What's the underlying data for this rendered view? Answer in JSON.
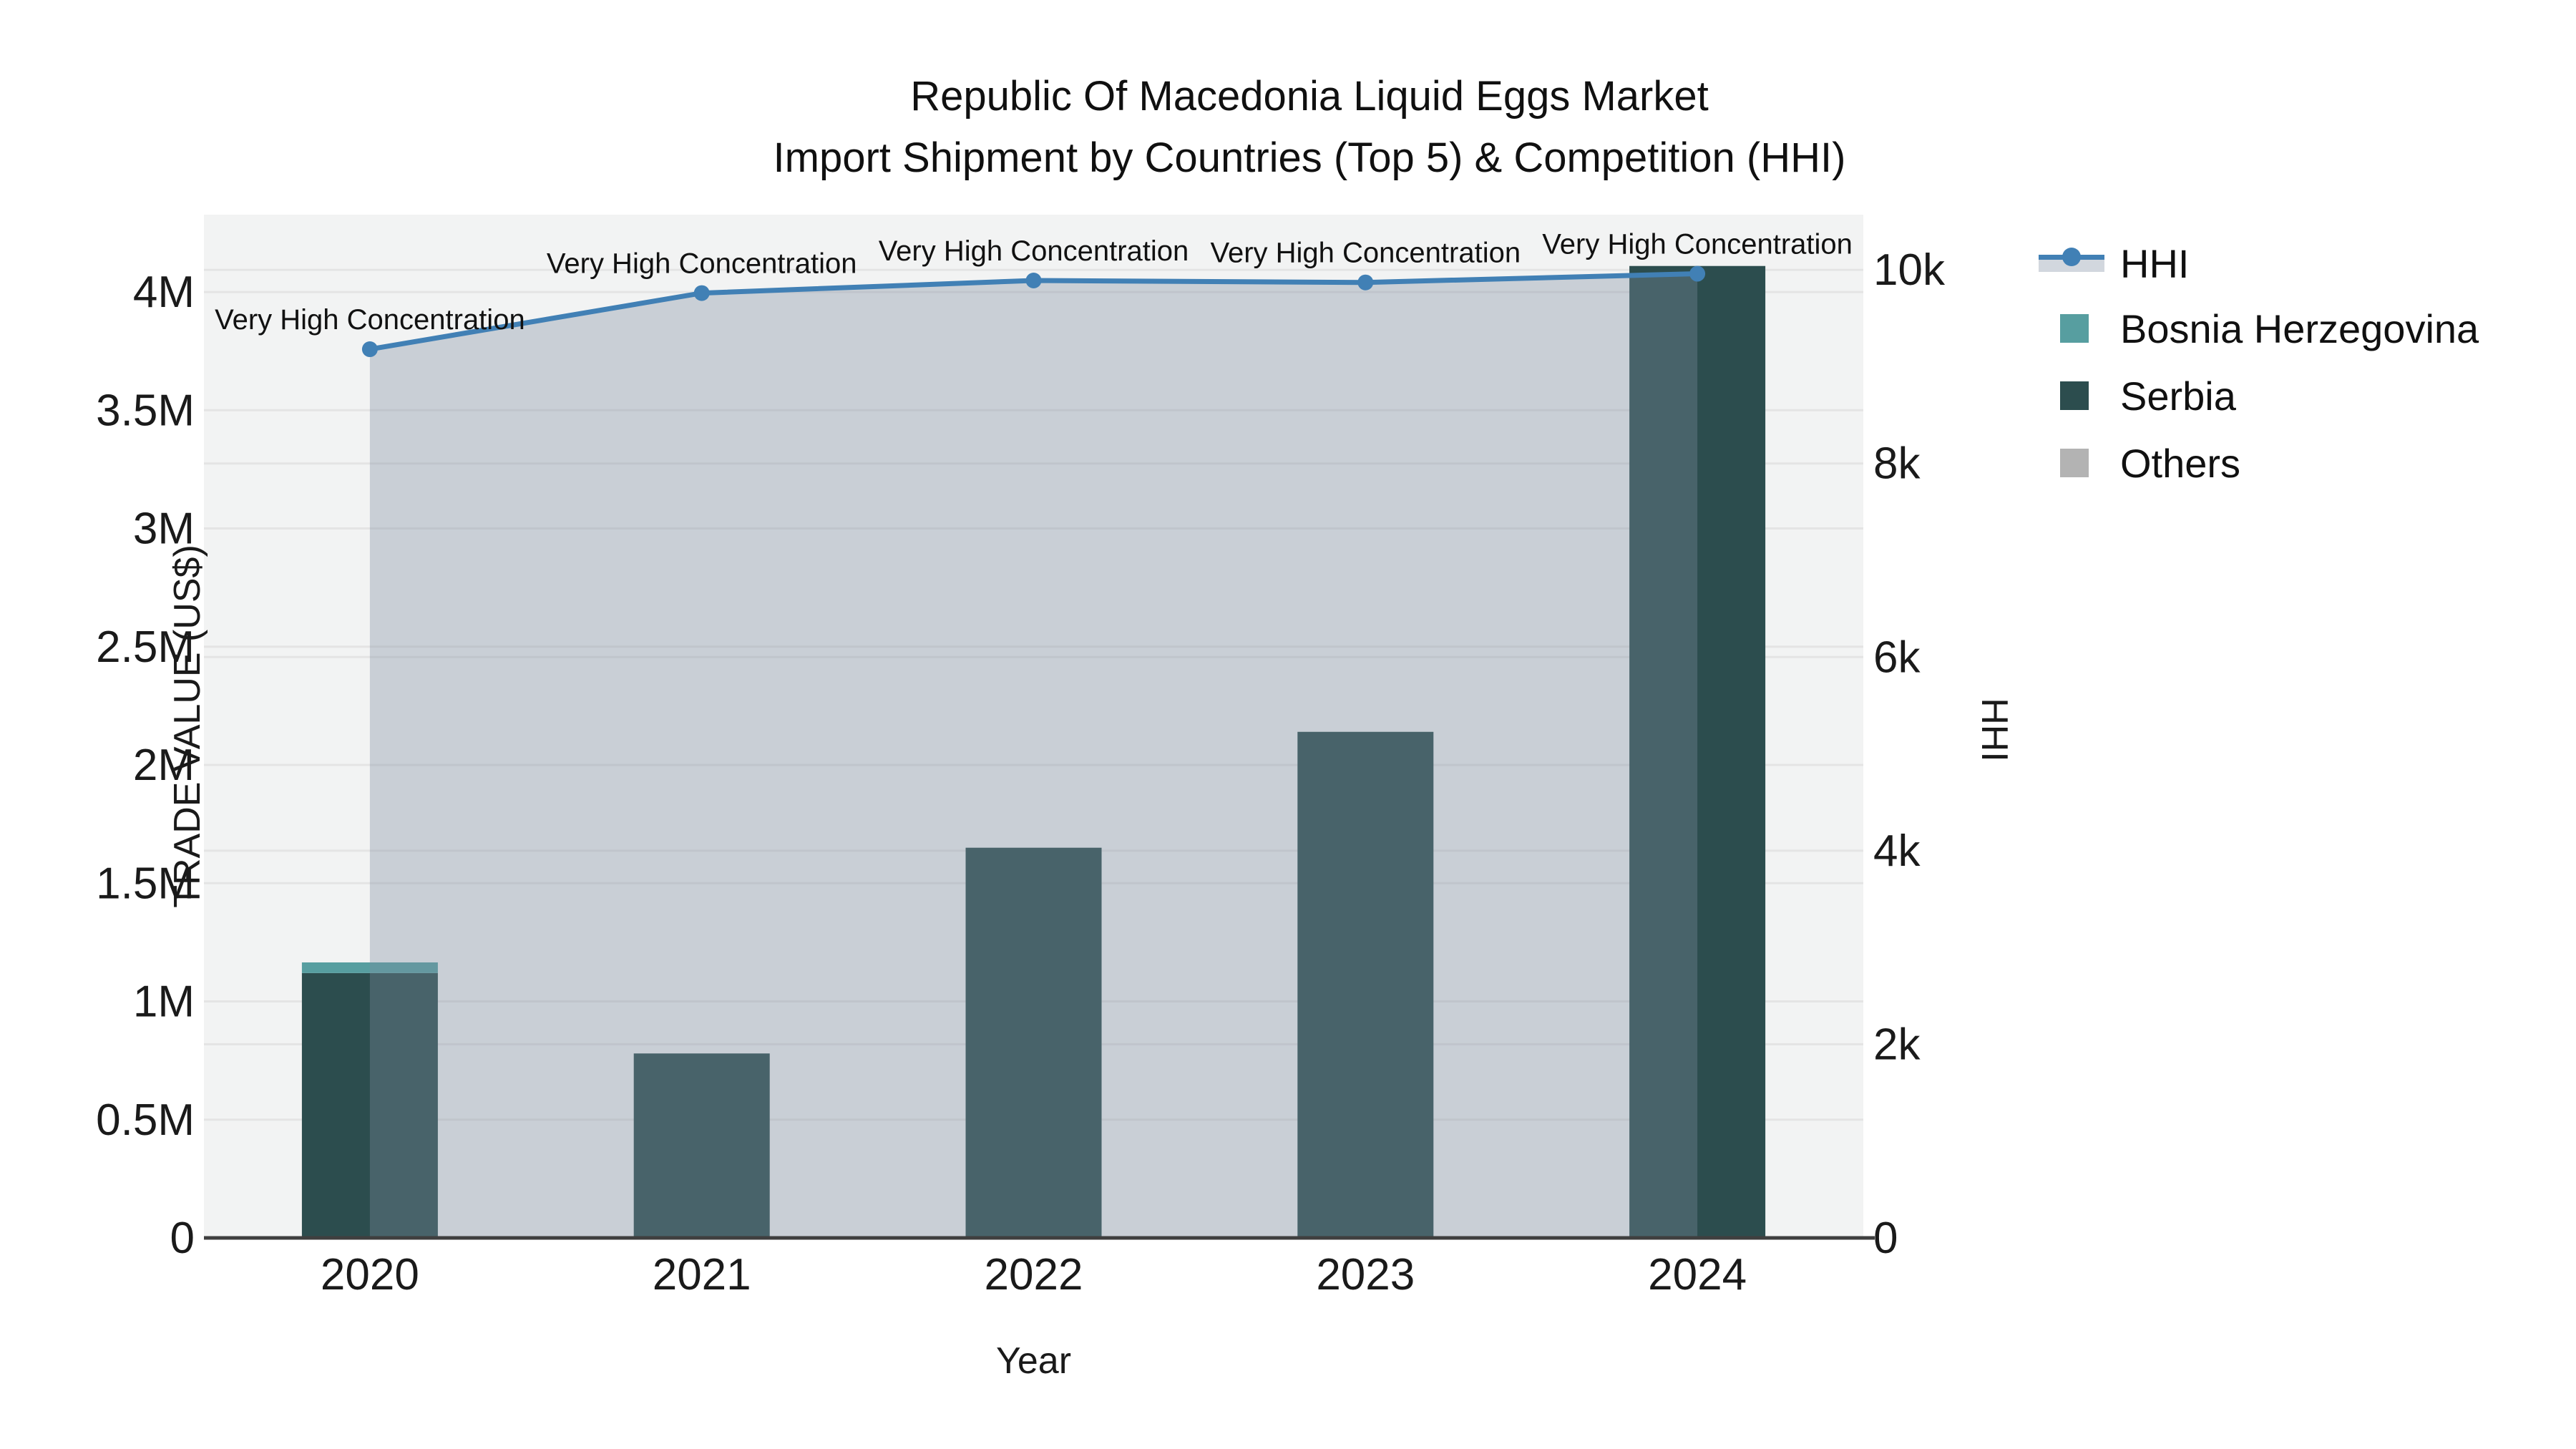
{
  "title": {
    "line1": "Republic Of Macedonia Liquid Eggs Market",
    "line2": "Import Shipment by Countries (Top 5) & Competition (HHI)"
  },
  "axes": {
    "x_title": "Year",
    "y_left_title": "TRADE VALUE (US$)",
    "y_right_title": "HHI"
  },
  "legend": {
    "items": [
      {
        "label": "HHI",
        "type": "line",
        "color": "#4180b5",
        "fill": "#d2d7de"
      },
      {
        "label": "Bosnia Herzegovina",
        "type": "bar",
        "color": "#579ea0"
      },
      {
        "label": "Serbia",
        "type": "bar",
        "color": "#2c4d4e"
      },
      {
        "label": "Others",
        "type": "bar",
        "color": "#b3b3b3"
      }
    ]
  },
  "chart_data": {
    "type": "bar",
    "subtype": "stacked-bars-with-line-area-dual-axis",
    "title": "Republic Of Macedonia Liquid Eggs Market Import Shipment by Countries (Top 5) & Competition (HHI)",
    "xlabel": "Year",
    "ylabel_left": "TRADE VALUE (US$)",
    "ylabel_right": "HHI",
    "categories": [
      "2020",
      "2021",
      "2022",
      "2023",
      "2024"
    ],
    "bar_series": [
      {
        "name": "Serbia",
        "color": "#2c4d4e",
        "values": [
          1120000,
          780000,
          1650000,
          2140000,
          4110000
        ]
      },
      {
        "name": "Bosnia Herzegovina",
        "color": "#579ea0",
        "values": [
          45000,
          0,
          0,
          0,
          0
        ]
      },
      {
        "name": "Others",
        "color": "#b3b3b3",
        "values": [
          0,
          0,
          0,
          0,
          0
        ]
      }
    ],
    "line_series": {
      "name": "HHI",
      "yaxis": "right",
      "color": "#4180b5",
      "area_fill": "rgba(125,140,160,0.35)",
      "values": [
        9180,
        9760,
        9890,
        9870,
        9960
      ]
    },
    "annotations": [
      "Very High Concentration",
      "Very High Concentration",
      "Very High Concentration",
      "Very High Concentration",
      "Very High Concentration"
    ],
    "y_left": {
      "min": 0,
      "max": 4327000,
      "tick_values": [
        0,
        500000,
        1000000,
        1500000,
        2000000,
        2500000,
        3000000,
        3500000,
        4000000
      ],
      "tick_labels": [
        "0",
        "0.5M",
        "1M",
        "1.5M",
        "2M",
        "2.5M",
        "3M",
        "3.5M",
        "4M"
      ]
    },
    "y_right": {
      "min": 0,
      "max": 10570,
      "tick_values": [
        0,
        2000,
        4000,
        6000,
        8000,
        10000
      ],
      "tick_labels": [
        "0",
        "2k",
        "4k",
        "6k",
        "8k",
        "10k"
      ]
    },
    "style": {
      "plot_bg": "#f2f3f3",
      "gridline": "#e4e4e4",
      "axis_line": "#3f3f3f",
      "text_color": "#1a1a1a"
    },
    "grid": true,
    "legend_position": "right"
  }
}
